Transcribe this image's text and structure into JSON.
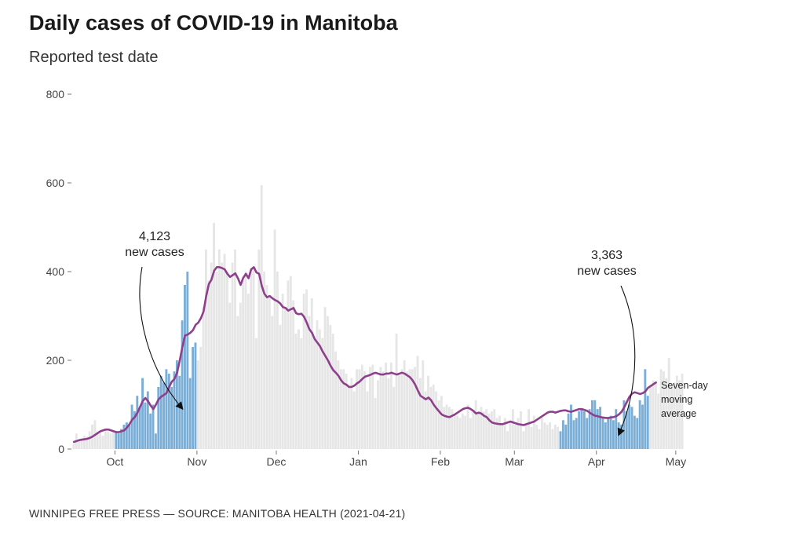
{
  "header": {
    "title": "Daily cases of COVID-19 in Manitoba",
    "subtitle": "Reported test date"
  },
  "footer": {
    "source": "WINNIPEG FREE PRESS — SOURCE: MANITOBA HEALTH (2021-04-21)"
  },
  "colors": {
    "bar_gray": "#e6e6e6",
    "bar_blue": "#7aaed6",
    "line": "#8e3f8c",
    "axis_text": "#444444"
  },
  "chart_data": {
    "type": "bar",
    "title": "Daily cases of COVID-19 in Manitoba",
    "subtitle": "Reported test date",
    "xlabel": "",
    "ylabel": "",
    "ylim": [
      0,
      800
    ],
    "yticks": [
      0,
      200,
      400,
      600,
      800
    ],
    "ytick_labels": [
      "0",
      "200",
      "400",
      "600",
      "800"
    ],
    "start_date": "2020-09-15",
    "xticks": [
      {
        "day": 16,
        "label": "Oct"
      },
      {
        "day": 47,
        "label": "Nov"
      },
      {
        "day": 77,
        "label": "Dec"
      },
      {
        "day": 108,
        "label": "Jan"
      },
      {
        "day": 139,
        "label": "Feb"
      },
      {
        "day": 167,
        "label": "Mar"
      },
      {
        "day": 198,
        "label": "Apr"
      },
      {
        "day": 228,
        "label": "May"
      }
    ],
    "highlight_periods": [
      {
        "start_day": 16,
        "end_day": 46,
        "label": "4,123 new cases"
      },
      {
        "start_day": 184,
        "end_day": 217,
        "label": "3,363 new cases"
      }
    ],
    "series": [
      {
        "name": "Daily cases",
        "type": "bar",
        "values": [
          12,
          35,
          22,
          25,
          30,
          28,
          40,
          55,
          65,
          40,
          38,
          30,
          45,
          40,
          35,
          38,
          40,
          35,
          45,
          55,
          60,
          55,
          100,
          85,
          120,
          95,
          160,
          105,
          130,
          80,
          100,
          35,
          140,
          165,
          150,
          180,
          170,
          140,
          175,
          200,
          165,
          290,
          370,
          400,
          160,
          230,
          240,
          200,
          230,
          320,
          450,
          380,
          420,
          510,
          400,
          450,
          420,
          440,
          400,
          330,
          420,
          450,
          300,
          330,
          380,
          400,
          350,
          400,
          410,
          250,
          450,
          595,
          400,
          370,
          340,
          300,
          495,
          400,
          280,
          350,
          320,
          380,
          390,
          335,
          260,
          270,
          250,
          350,
          360,
          300,
          340,
          250,
          290,
          270,
          250,
          320,
          300,
          280,
          260,
          220,
          200,
          180,
          180,
          170,
          140,
          160,
          130,
          180,
          180,
          190,
          175,
          130,
          185,
          190,
          115,
          155,
          185,
          175,
          195,
          160,
          195,
          140,
          260,
          170,
          180,
          200,
          175,
          180,
          180,
          185,
          210,
          160,
          200,
          130,
          165,
          140,
          145,
          130,
          110,
          120,
          95,
          100,
          95,
          90,
          80,
          75,
          70,
          80,
          75,
          100,
          70,
          85,
          110,
          80,
          95,
          85,
          90,
          80,
          85,
          90,
          70,
          75,
          55,
          70,
          40,
          60,
          90,
          55,
          70,
          85,
          40,
          55,
          90,
          50,
          75,
          55,
          45,
          70,
          60,
          55,
          60,
          45,
          55,
          50,
          40,
          65,
          55,
          80,
          100,
          65,
          70,
          85,
          90,
          85,
          70,
          90,
          110,
          110,
          90,
          95,
          70,
          60,
          70,
          75,
          65,
          90,
          60,
          55,
          110,
          85,
          100,
          95,
          75,
          70,
          110,
          100,
          180,
          120,
          140,
          155,
          150,
          125,
          180,
          175,
          160,
          205,
          145,
          150,
          165,
          155,
          170
        ]
      },
      {
        "name": "Seven-day moving average",
        "type": "line",
        "values": [
          16,
          18,
          20,
          21,
          22,
          23,
          25,
          28,
          32,
          36,
          40,
          42,
          44,
          44,
          42,
          40,
          38,
          38,
          40,
          42,
          48,
          56,
          66,
          72,
          82,
          95,
          108,
          115,
          108,
          98,
          90,
          100,
          112,
          118,
          122,
          126,
          140,
          152,
          158,
          172,
          200,
          230,
          256,
          258,
          262,
          268,
          280,
          285,
          295,
          310,
          345,
          372,
          382,
          402,
          410,
          410,
          408,
          405,
          395,
          388,
          392,
          396,
          385,
          370,
          386,
          395,
          385,
          405,
          410,
          398,
          395,
          368,
          350,
          342,
          345,
          340,
          336,
          333,
          328,
          320,
          318,
          312,
          315,
          318,
          306,
          304,
          305,
          298,
          285,
          270,
          262,
          248,
          240,
          232,
          220,
          210,
          200,
          188,
          178,
          172,
          165,
          155,
          148,
          145,
          140,
          140,
          143,
          148,
          152,
          158,
          163,
          165,
          167,
          170,
          172,
          170,
          168,
          168,
          170,
          170,
          172,
          170,
          168,
          170,
          172,
          170,
          166,
          162,
          155,
          145,
          132,
          120,
          116,
          112,
          116,
          110,
          100,
          92,
          85,
          78,
          75,
          73,
          72,
          75,
          78,
          82,
          86,
          90,
          92,
          93,
          90,
          86,
          80,
          82,
          80,
          75,
          72,
          65,
          60,
          58,
          57,
          56,
          56,
          58,
          60,
          62,
          60,
          58,
          56,
          55,
          54,
          56,
          58,
          60,
          62,
          66,
          70,
          74,
          78,
          82,
          84,
          84,
          82,
          84,
          86,
          87,
          87,
          85,
          84,
          86,
          88,
          90,
          90,
          88,
          86,
          82,
          78,
          75,
          74,
          72,
          71,
          70,
          70,
          71,
          72,
          74,
          78,
          84,
          94,
          106,
          118,
          125,
          128,
          126,
          124,
          126,
          130,
          138,
          142,
          146,
          150
        ]
      }
    ],
    "annotations": [
      {
        "text_lines": [
          "4,123",
          "new cases"
        ]
      },
      {
        "text_lines": [
          "3,363",
          "new cases"
        ]
      },
      {
        "text_lines": [
          "Seven-day",
          "moving",
          "average"
        ]
      }
    ]
  }
}
